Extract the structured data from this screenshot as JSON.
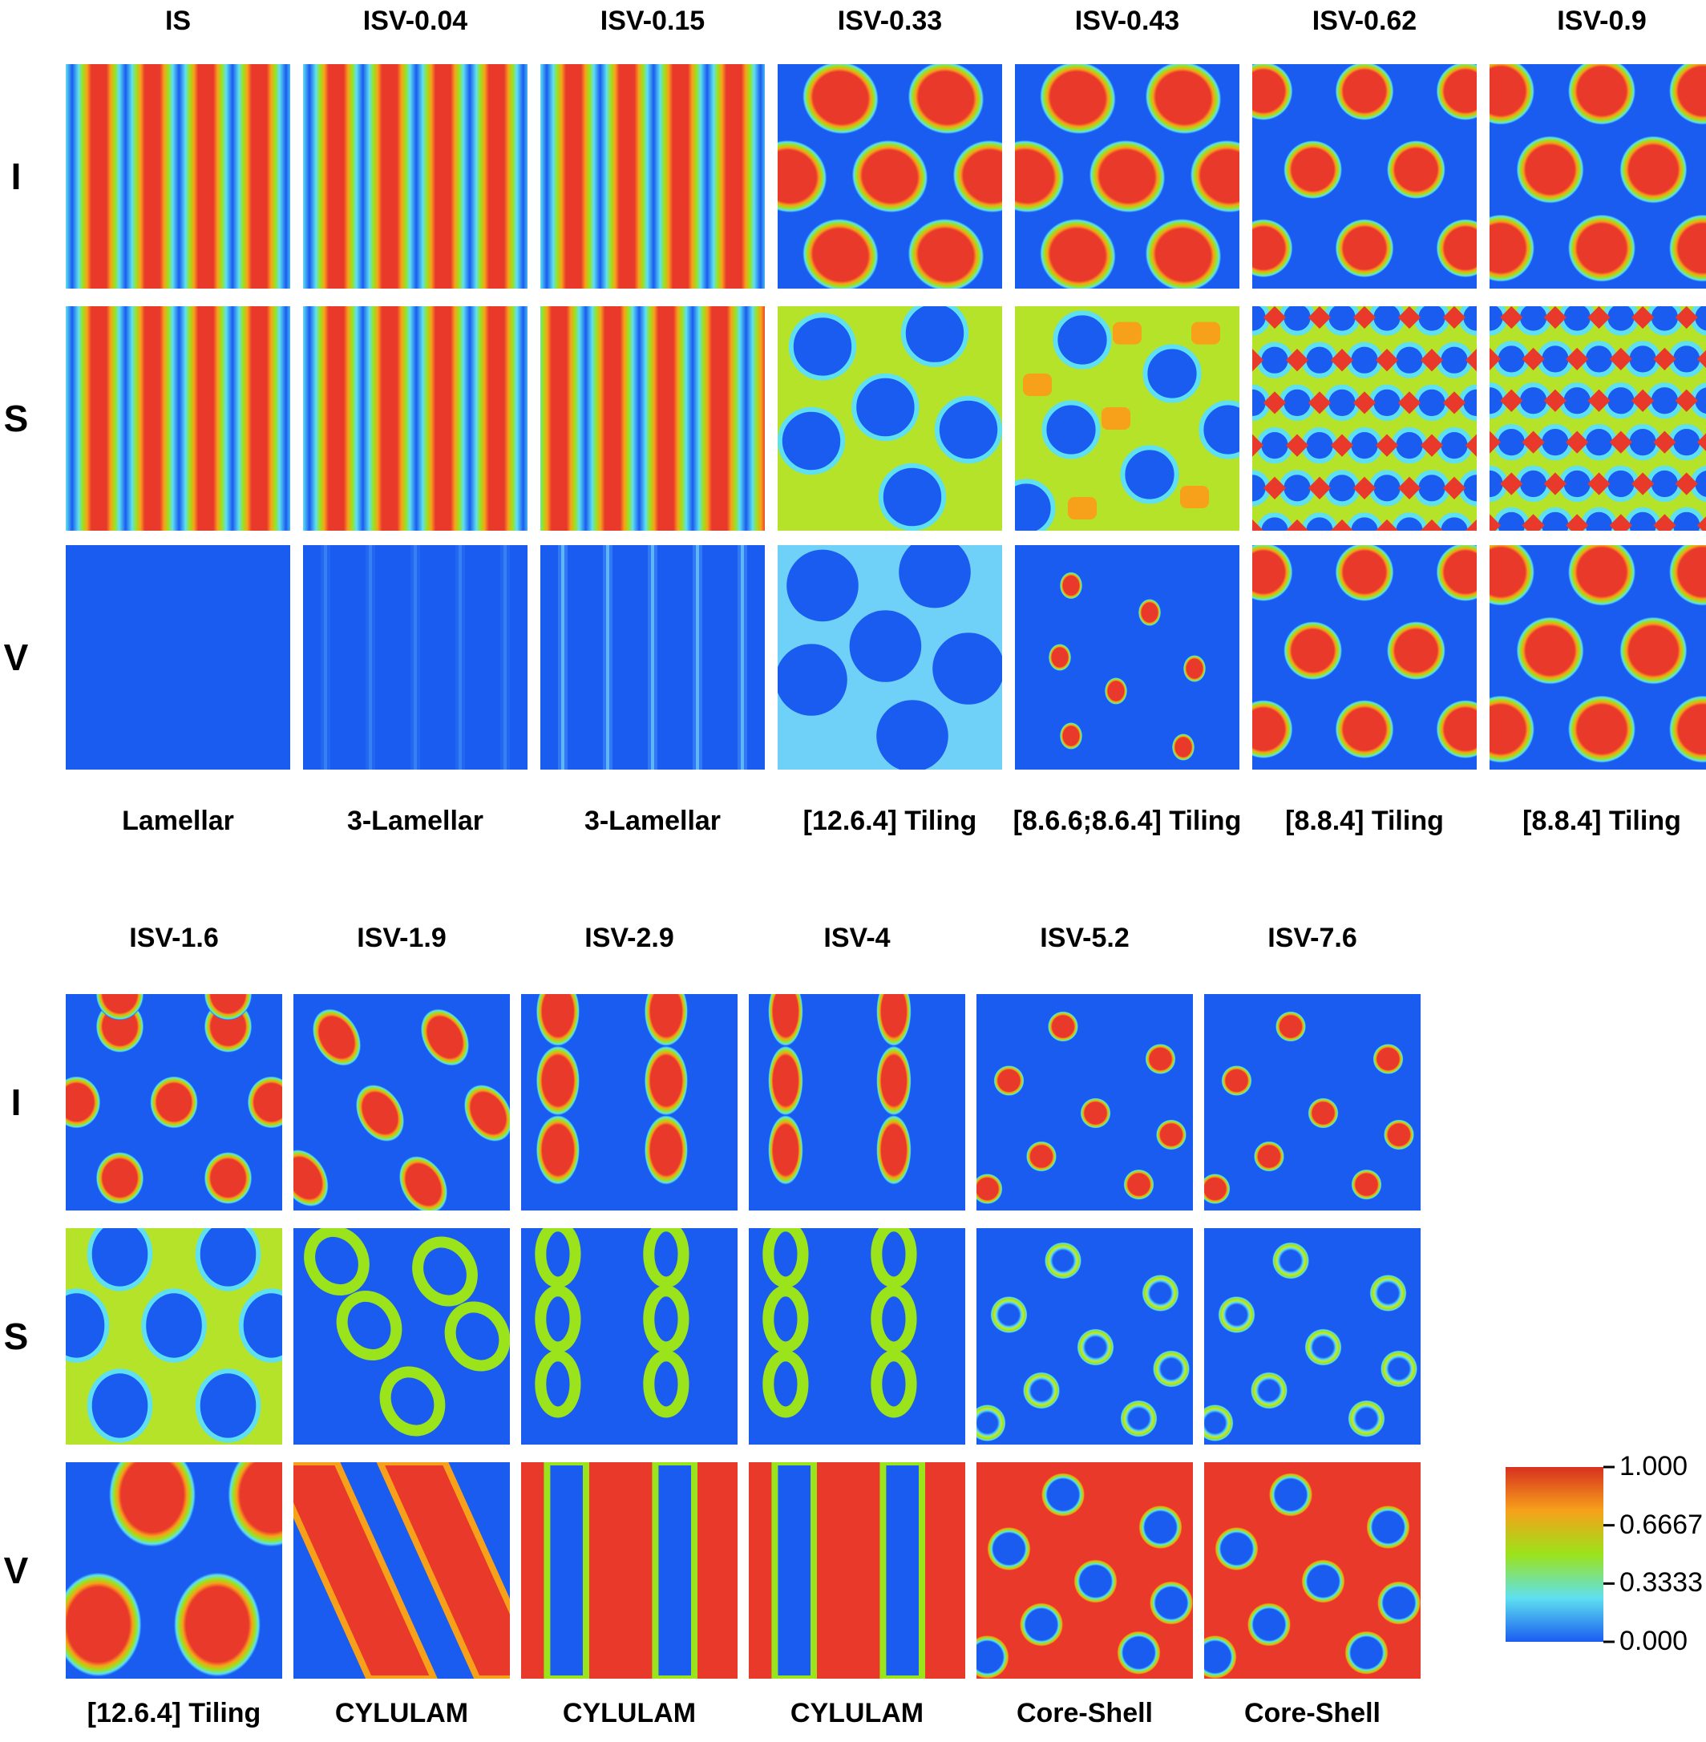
{
  "top_block": {
    "columns": [
      "IS",
      "ISV-0.04",
      "ISV-0.15",
      "ISV-0.33",
      "ISV-0.43",
      "ISV-0.62",
      "ISV-0.9"
    ],
    "phases": [
      "Lamellar",
      "3-Lamellar",
      "3-Lamellar",
      "[12.6.4] Tiling",
      "[8.6.6;8.6.4] Tiling",
      "[8.8.4] Tiling",
      "[8.8.4] Tiling"
    ],
    "patterns": {
      "I": [
        "lam-a",
        "lam-a",
        "lam-a",
        "hex-big",
        "hex-big",
        "sq-med",
        "sq-big"
      ],
      "S": [
        "lam-a",
        "lam-a",
        "lam-b",
        "tile1264",
        "tile8664",
        "tile884",
        "tile884b"
      ],
      "V": [
        "uniform",
        "faint-lam",
        "faint-lam2",
        "tile1264v",
        "tile8664v",
        "sq-med",
        "sq-big"
      ]
    }
  },
  "bottom_block": {
    "columns": [
      "ISV-1.6",
      "ISV-1.9",
      "ISV-2.9",
      "ISV-4",
      "ISV-5.2",
      "ISV-7.6"
    ],
    "phases": [
      "[12.6.4] Tiling",
      "CYLULAM",
      "CYLULAM",
      "CYLULAM",
      "Core-Shell",
      "Core-Shell"
    ],
    "patterns": {
      "I": [
        "hex-med",
        "diag-ovals",
        "col-ovals",
        "col-ovals-thin",
        "small-dots",
        "small-dots"
      ],
      "S": [
        "ring-net",
        "diag-rings",
        "col-rings",
        "col-rings-thin",
        "rings",
        "rings"
      ],
      "V": [
        "big-ovals",
        "diag-bands",
        "wavy-bands",
        "wavy-bands2",
        "holes",
        "holes"
      ]
    }
  },
  "row_labels": [
    "I",
    "S",
    "V"
  ],
  "colorbar": {
    "ticks": [
      "1.000",
      "0.6667",
      "0.3333",
      "0.000"
    ],
    "colors": [
      "#d7301f",
      "#f7a11a",
      "#9be31a",
      "#5ee0f0",
      "#1a5cf0"
    ]
  }
}
